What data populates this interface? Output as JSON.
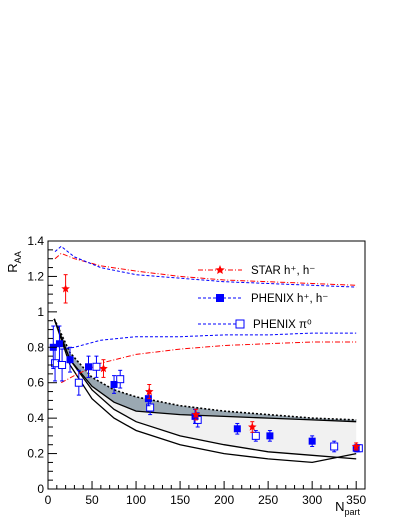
{
  "chart_data": {
    "type": "scatter",
    "title": "",
    "xlabel": {
      "main": "N",
      "sub": "part"
    },
    "ylabel": {
      "main": "R",
      "sub": "AA"
    },
    "xlim": [
      0,
      360
    ],
    "ylim": [
      0,
      1.4
    ],
    "x_ticks": [
      0,
      50,
      100,
      150,
      200,
      250,
      300,
      350
    ],
    "y_ticks": [
      0,
      0.2,
      0.4,
      0.6,
      0.8,
      1.0,
      1.2,
      1.4
    ],
    "x_tick_labels": [
      "0",
      "50",
      "100",
      "150",
      "200",
      "250",
      "300",
      "350"
    ],
    "y_tick_labels": [
      "0",
      "0.2",
      "0.4",
      "0.6",
      "0.8",
      "1",
      "1.2",
      "1.4"
    ],
    "grid": false,
    "legend_position": "top-right",
    "legend": [
      {
        "label": "STAR  h⁺, h⁻",
        "marker": "star",
        "line": "dashdot",
        "color": "#ff0000"
      },
      {
        "label": "PHENIX  h⁺, h⁻",
        "marker": "square",
        "line": "dashed",
        "color": "#0000ff"
      },
      {
        "label": "PHENIX  π⁰",
        "marker": "open-square",
        "line": "dashed",
        "color": "#0000ff"
      }
    ],
    "series": [
      {
        "name": "STAR  h⁺, h⁻",
        "marker": "star",
        "color": "#ff0000",
        "x": [
          20,
          63,
          115,
          168,
          232,
          350
        ],
        "y": [
          1.13,
          0.68,
          0.55,
          0.42,
          0.35,
          0.24
        ],
        "yerr": [
          0.08,
          0.05,
          0.04,
          0.03,
          0.03,
          0.02
        ]
      },
      {
        "name": "PHENIX  h⁺, h⁻",
        "marker": "square",
        "color": "#0000ff",
        "x": [
          6,
          13,
          25,
          46,
          75,
          114,
          167,
          215,
          252,
          300,
          350
        ],
        "y": [
          0.8,
          0.82,
          0.73,
          0.69,
          0.59,
          0.51,
          0.41,
          0.34,
          0.3,
          0.27,
          0.23
        ],
        "yerr": [
          0.12,
          0.1,
          0.07,
          0.06,
          0.05,
          0.04,
          0.04,
          0.03,
          0.03,
          0.03,
          0.02
        ]
      },
      {
        "name": "PHENIX  π⁰",
        "marker": "open-square",
        "color": "#0000ff",
        "x": [
          8,
          16,
          35,
          55,
          82,
          116,
          170,
          236,
          325,
          353
        ],
        "y": [
          0.71,
          0.7,
          0.6,
          0.69,
          0.62,
          0.46,
          0.39,
          0.3,
          0.24,
          0.23
        ],
        "yerr": [
          0.1,
          0.09,
          0.07,
          0.06,
          0.05,
          0.04,
          0.04,
          0.03,
          0.03,
          0.02
        ]
      },
      {
        "name": "",
        "style": "red dash-dot curves",
        "curves": [
          {
            "x": [
              8,
              15,
              30,
              60,
              100,
              150,
              200,
              250,
              300,
              350
            ],
            "y": [
              1.3,
              1.33,
              1.3,
              1.26,
              1.23,
              1.2,
              1.18,
              1.17,
              1.16,
              1.15
            ]
          },
          {
            "x": [
              15,
              30,
              60,
              100,
              150,
              200,
              250,
              300,
              350
            ],
            "y": [
              0.6,
              0.64,
              0.71,
              0.76,
              0.79,
              0.81,
              0.82,
              0.83,
              0.83
            ]
          }
        ]
      },
      {
        "name": "",
        "style": "blue dashed curves",
        "curves": [
          {
            "x": [
              8,
              15,
              30,
              60,
              100,
              150,
              200,
              250,
              300,
              350
            ],
            "y": [
              1.34,
              1.37,
              1.31,
              1.25,
              1.21,
              1.19,
              1.17,
              1.16,
              1.15,
              1.14
            ]
          },
          {
            "x": [
              15,
              30,
              60,
              100,
              150,
              200,
              250,
              300,
              350
            ],
            "y": [
              0.79,
              0.8,
              0.84,
              0.86,
              0.86,
              0.87,
              0.87,
              0.88,
              0.88
            ]
          }
        ]
      },
      {
        "name": "",
        "style": "dark shaded band",
        "upper": {
          "x": [
            7,
            25,
            50,
            75,
            100,
            150,
            200,
            250,
            300,
            350
          ],
          "y": [
            0.96,
            0.77,
            0.63,
            0.56,
            0.52,
            0.47,
            0.44,
            0.42,
            0.4,
            0.39
          ]
        },
        "lower": {
          "x": [
            7,
            25,
            50,
            75,
            100,
            150,
            200,
            250,
            300,
            350
          ],
          "y": [
            0.96,
            0.73,
            0.58,
            0.49,
            0.44,
            0.42,
            0.41,
            0.4,
            0.39,
            0.38
          ]
        }
      },
      {
        "name": "",
        "style": "light shaded band",
        "upper": {
          "x": [
            7,
            25,
            50,
            75,
            100,
            150,
            200,
            250,
            300,
            350
          ],
          "y": [
            0.96,
            0.73,
            0.58,
            0.49,
            0.44,
            0.42,
            0.41,
            0.4,
            0.39,
            0.38
          ]
        },
        "lower": {
          "x": [
            7,
            25,
            50,
            75,
            100,
            150,
            200,
            250,
            300,
            350
          ],
          "y": [
            0.96,
            0.73,
            0.56,
            0.45,
            0.38,
            0.3,
            0.25,
            0.21,
            0.19,
            0.17
          ]
        }
      },
      {
        "name": "",
        "style": "solid black curve",
        "x": [
          7,
          25,
          50,
          75,
          100,
          150,
          200,
          250,
          300,
          350
        ],
        "y": [
          0.96,
          0.7,
          0.51,
          0.4,
          0.33,
          0.25,
          0.2,
          0.17,
          0.15,
          0.2
        ]
      }
    ]
  }
}
